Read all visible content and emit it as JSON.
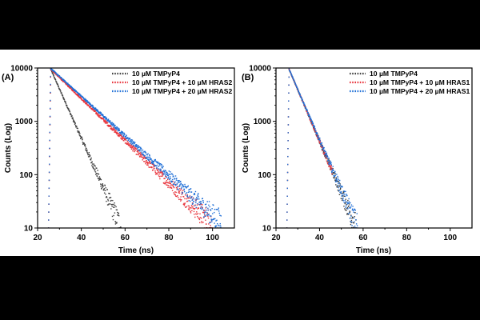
{
  "chart_data": [
    {
      "type": "scatter",
      "panel_label": "(A)",
      "xlabel": "Time (ns)",
      "ylabel": "Counts (Log)",
      "xlim": [
        20,
        110
      ],
      "ylim": [
        10,
        10000
      ],
      "yscale": "log",
      "xticks": [
        "20",
        "40",
        "60",
        "80",
        "100"
      ],
      "yticks": [
        "10",
        "100",
        "1000",
        "10000"
      ],
      "legend_position": "top-right",
      "series": [
        {
          "name": "10 µM TMPyP4",
          "color": "#404040",
          "rise_start": 25.0,
          "peak_time": 26.0,
          "peak_counts": 9500,
          "end_time": 62,
          "decay_lifetime_ns": 4.7
        },
        {
          "name": "10 µM TMPyP4 + 10 µM HRAS2",
          "color": "#e8343c",
          "rise_start": 25.0,
          "peak_time": 26.0,
          "peak_counts": 9500,
          "end_time": 100,
          "decay_lifetime_ns": 11.0
        },
        {
          "name": "10 µM TMPyP4 + 20 µM HRAS2",
          "color": "#1f6fd6",
          "rise_start": 25.0,
          "peak_time": 26.0,
          "peak_counts": 9800,
          "end_time": 104,
          "decay_lifetime_ns": 11.7
        }
      ]
    },
    {
      "type": "scatter",
      "panel_label": "(B)",
      "xlabel": "Time (ns)",
      "ylabel": "Counts (Log)",
      "xlim": [
        20,
        110
      ],
      "ylim": [
        10,
        10000
      ],
      "yscale": "log",
      "xticks": [
        "20",
        "40",
        "60",
        "80",
        "100"
      ],
      "yticks": [
        "10",
        "100",
        "1000",
        "10000"
      ],
      "legend_position": "top-right",
      "series": [
        {
          "name": "10 µM TMPyP4",
          "color": "#404040",
          "rise_start": 25.0,
          "peak_time": 26.0,
          "peak_counts": 9500,
          "end_time": 60,
          "decay_lifetime_ns": 4.5
        },
        {
          "name": "10 µM TMPyP4 + 10 µM HRAS1",
          "color": "#e8343c",
          "rise_start": 25.0,
          "peak_time": 26.0,
          "peak_counts": 9500,
          "end_time": 46,
          "decay_lifetime_ns": 4.5
        },
        {
          "name": "10 µM TMPyP4 + 20 µM HRAS1",
          "color": "#1f6fd6",
          "rise_start": 25.0,
          "peak_time": 26.0,
          "peak_counts": 9500,
          "end_time": 72,
          "decay_lifetime_ns": 4.6
        }
      ]
    }
  ],
  "colors": {
    "page_background": "#000000",
    "panel_background": "#ffffff",
    "axis": "#000000"
  }
}
